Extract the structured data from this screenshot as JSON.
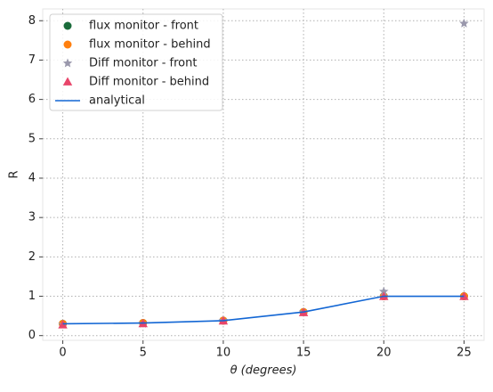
{
  "chart_data": {
    "type": "line",
    "xlabel": "θ (degrees)",
    "ylabel": "R",
    "x": [
      0,
      5,
      10,
      15,
      20,
      25
    ],
    "series": [
      {
        "name": "flux monitor - front",
        "color": "#1a6b3a",
        "marker": "circle",
        "values": [
          0.3,
          0.32,
          0.38,
          0.6,
          1.0,
          1.0
        ]
      },
      {
        "name": "flux monitor - behind",
        "color": "#ff7f0e",
        "marker": "circle",
        "values": [
          0.3,
          0.32,
          0.38,
          0.6,
          1.0,
          1.0
        ]
      },
      {
        "name": "Diff monitor - front",
        "color": "#9a98ac",
        "marker": "star",
        "values": [
          0.28,
          0.3,
          0.38,
          0.6,
          1.12,
          7.93
        ]
      },
      {
        "name": "Diff monitor - behind",
        "color": "#e8456a",
        "marker": "triangle",
        "values": [
          0.27,
          0.3,
          0.37,
          0.58,
          0.99,
          0.99
        ]
      },
      {
        "name": "analytical",
        "color": "#1266d4",
        "marker": "line",
        "values": [
          0.3,
          0.32,
          0.38,
          0.6,
          1.0,
          1.0
        ]
      }
    ],
    "xlim": [
      -1.25,
      26.25
    ],
    "xticks": [
      0,
      5,
      10,
      15,
      20,
      25
    ],
    "ylim": [
      -0.12,
      8.3
    ],
    "yticks": [
      0,
      1,
      2,
      3,
      4,
      5,
      6,
      7,
      8
    ],
    "grid": true,
    "legend": "upper-left"
  }
}
